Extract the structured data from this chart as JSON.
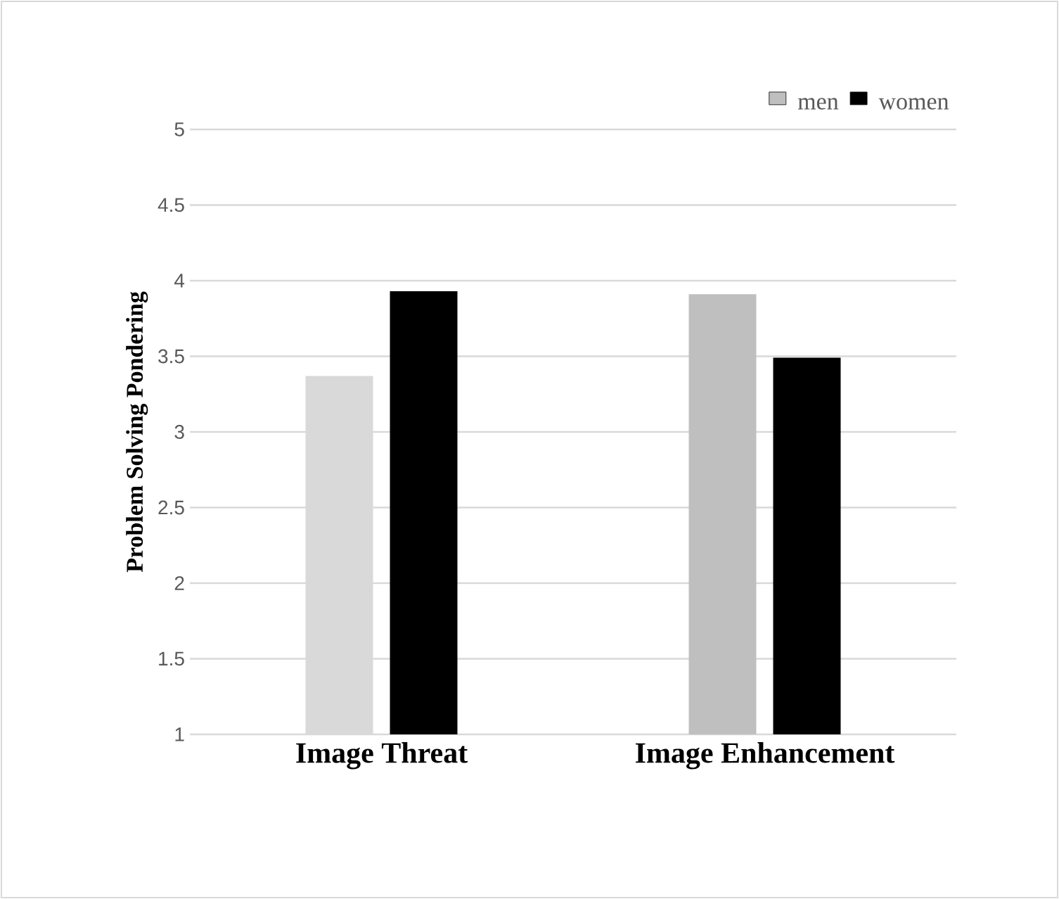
{
  "chart_data": {
    "type": "bar",
    "ylabel": "Problem Solving Pondering",
    "categories": [
      "Image Threat",
      "Image Enhancement"
    ],
    "series": [
      {
        "name": "men",
        "color": "#bfbfbf",
        "colors": [
          "#d9d9d9",
          "#bfbfbf"
        ],
        "values": [
          3.37,
          3.91
        ]
      },
      {
        "name": "women",
        "color": "#000000",
        "values": [
          3.93,
          3.49
        ]
      }
    ],
    "ylim": [
      1,
      5
    ],
    "yticks": [
      1,
      1.5,
      2,
      2.5,
      3,
      3.5,
      4,
      4.5,
      5
    ],
    "grid": "y",
    "legend": "top right"
  }
}
